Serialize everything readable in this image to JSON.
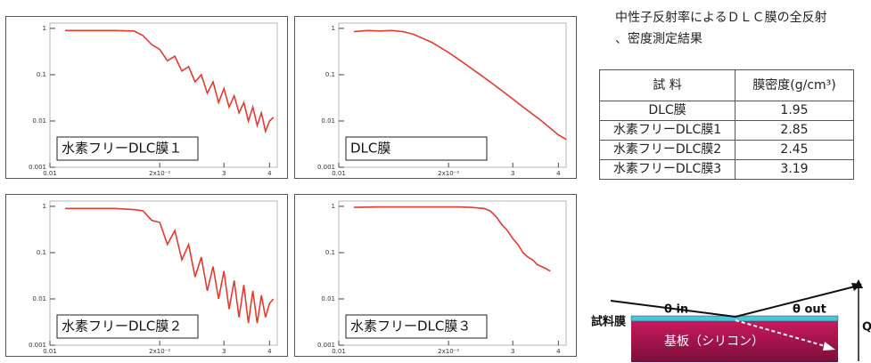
{
  "chart_data": [
    {
      "type": "line",
      "label": "水素フリーDLC膜１",
      "color": "#e8392f",
      "log_x": true,
      "log_y": true,
      "x": [
        0.011,
        0.013,
        0.015,
        0.017,
        0.018,
        0.019,
        0.02,
        0.021,
        0.022,
        0.023,
        0.024,
        0.025,
        0.026,
        0.027,
        0.028,
        0.029,
        0.03,
        0.031,
        0.032,
        0.033,
        0.034,
        0.035,
        0.036,
        0.037,
        0.038,
        0.039,
        0.04,
        0.041
      ],
      "values": [
        0.9,
        0.9,
        0.9,
        0.88,
        0.7,
        0.45,
        0.35,
        0.2,
        0.25,
        0.12,
        0.15,
        0.07,
        0.1,
        0.04,
        0.07,
        0.025,
        0.05,
        0.02,
        0.035,
        0.015,
        0.025,
        0.01,
        0.02,
        0.008,
        0.015,
        0.006,
        0.01,
        0.012
      ],
      "xlim": [
        0.01,
        0.042
      ],
      "ylim": [
        0.001,
        1.3
      ],
      "xticks": [
        {
          "value": 0.01,
          "label": "0.01"
        },
        {
          "value": 0.02,
          "label": "2x10⁻²"
        },
        {
          "value": 0.03,
          "label": "3"
        },
        {
          "value": 0.04,
          "label": "4"
        }
      ],
      "yticks": [
        1,
        0.1,
        0.01,
        0.001
      ]
    },
    {
      "type": "line",
      "label": "DLC膜",
      "color": "#e8392f",
      "log_x": true,
      "log_y": true,
      "x": [
        0.011,
        0.012,
        0.013,
        0.014,
        0.015,
        0.016,
        0.018,
        0.02,
        0.022,
        0.024,
        0.026,
        0.028,
        0.03,
        0.032,
        0.034,
        0.036,
        0.038,
        0.04,
        0.042
      ],
      "values": [
        0.85,
        0.9,
        0.88,
        0.9,
        0.85,
        0.75,
        0.5,
        0.3,
        0.18,
        0.11,
        0.07,
        0.045,
        0.03,
        0.02,
        0.014,
        0.01,
        0.007,
        0.005,
        0.004
      ],
      "xlim": [
        0.01,
        0.042
      ],
      "ylim": [
        0.001,
        1.3
      ],
      "xticks": [
        {
          "value": 0.01,
          "label": "0.01"
        },
        {
          "value": 0.02,
          "label": "2x10⁻²"
        },
        {
          "value": 0.03,
          "label": "3"
        },
        {
          "value": 0.04,
          "label": "4"
        }
      ],
      "yticks": [
        1,
        0.1,
        0.01,
        0.001
      ]
    },
    {
      "type": "line",
      "label": "水素フリーDLC膜２",
      "color": "#e8392f",
      "log_x": true,
      "log_y": true,
      "x": [
        0.011,
        0.013,
        0.015,
        0.017,
        0.018,
        0.019,
        0.02,
        0.021,
        0.022,
        0.023,
        0.024,
        0.025,
        0.026,
        0.027,
        0.028,
        0.029,
        0.03,
        0.031,
        0.032,
        0.033,
        0.034,
        0.035,
        0.036,
        0.037,
        0.038,
        0.039,
        0.04,
        0.041
      ],
      "values": [
        0.9,
        0.9,
        0.9,
        0.85,
        0.8,
        0.5,
        0.45,
        0.15,
        0.3,
        0.07,
        0.15,
        0.03,
        0.08,
        0.015,
        0.05,
        0.01,
        0.04,
        0.006,
        0.025,
        0.004,
        0.02,
        0.003,
        0.015,
        0.003,
        0.012,
        0.004,
        0.008,
        0.01
      ],
      "xlim": [
        0.01,
        0.042
      ],
      "ylim": [
        0.001,
        1.3
      ],
      "xticks": [
        {
          "value": 0.01,
          "label": "0.01"
        },
        {
          "value": 0.02,
          "label": "2x10⁻²"
        },
        {
          "value": 0.03,
          "label": "3"
        },
        {
          "value": 0.04,
          "label": "4"
        }
      ],
      "yticks": [
        1,
        0.1,
        0.01,
        0.001
      ]
    },
    {
      "type": "line",
      "label": "水素フリーDLC膜３",
      "color": "#e8392f",
      "log_x": true,
      "log_y": true,
      "x": [
        0.011,
        0.013,
        0.015,
        0.017,
        0.019,
        0.021,
        0.023,
        0.025,
        0.026,
        0.027,
        0.028,
        0.029,
        0.03,
        0.031,
        0.032,
        0.033,
        0.034,
        0.035,
        0.036,
        0.037,
        0.038
      ],
      "values": [
        0.95,
        0.97,
        0.97,
        0.97,
        0.97,
        0.97,
        0.95,
        0.9,
        0.8,
        0.6,
        0.4,
        0.3,
        0.2,
        0.15,
        0.1,
        0.08,
        0.07,
        0.055,
        0.05,
        0.045,
        0.04
      ],
      "xlim": [
        0.01,
        0.042
      ],
      "ylim": [
        0.001,
        1.3
      ],
      "xticks": [
        {
          "value": 0.01,
          "label": "0.01"
        },
        {
          "value": 0.02,
          "label": "2x10⁻²"
        },
        {
          "value": 0.03,
          "label": "3"
        },
        {
          "value": 0.04,
          "label": "4"
        }
      ],
      "yticks": [
        1,
        0.1,
        0.01,
        0.001
      ]
    }
  ],
  "caption": [
    "中性子反射率によるＤＬＣ膜の全反射",
    "、密度測定結果"
  ],
  "table": {
    "header": [
      "試 料",
      "膜密度(g/cm³)"
    ],
    "rows": [
      [
        "DLC膜",
        "1.95"
      ],
      [
        "水素フリーDLC膜1",
        "2.85"
      ],
      [
        "水素フリーDLC膜2",
        "2.45"
      ],
      [
        "水素フリーDLC膜3",
        "3.19"
      ]
    ]
  },
  "diagram": {
    "film": "試料膜",
    "theta_in": "θ in",
    "theta_out": "θ out",
    "substrate": "基板（シリコン）",
    "q": "Q"
  }
}
